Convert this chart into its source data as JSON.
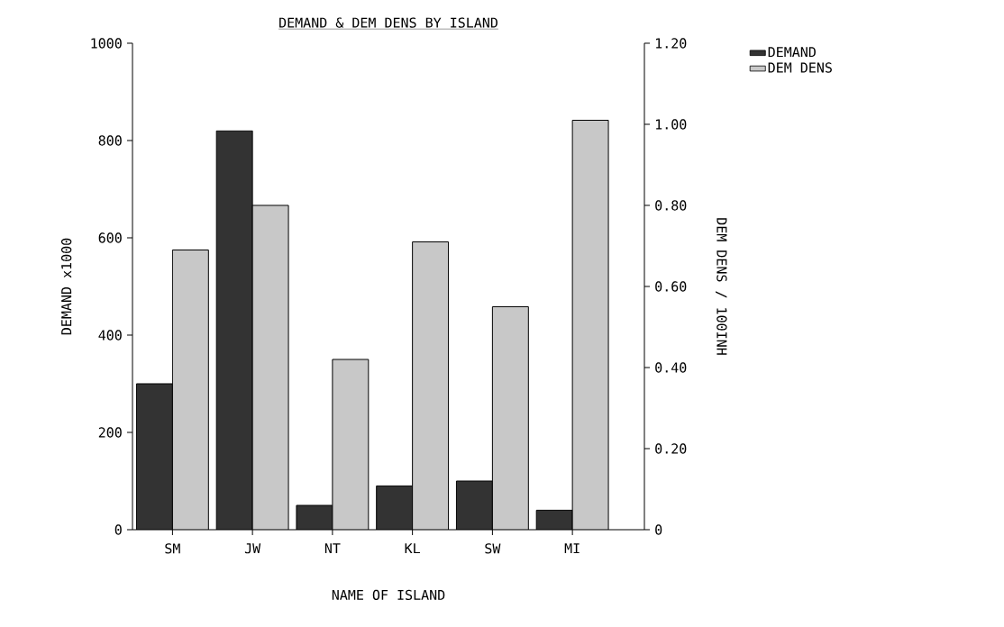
{
  "chart_data": {
    "type": "bar",
    "title": "DEMAND & DEM DENS BY ISLAND",
    "xlabel": "NAME OF ISLAND",
    "ylabel": "DEMAND x1000",
    "y2label": "DEM DENS / 100INH",
    "categories": [
      "SM",
      "JW",
      "NT",
      "KL",
      "SW",
      "MI"
    ],
    "series": [
      {
        "name": "DEMAND",
        "color": "#333333",
        "values": [
          300,
          820,
          50,
          90,
          100,
          40
        ]
      },
      {
        "name": "DEM DENS",
        "color": "#c8c8c8",
        "axis": "y2",
        "values": [
          0.69,
          0.8,
          0.42,
          0.71,
          0.55,
          1.01
        ]
      }
    ],
    "ylim": [
      0,
      1000
    ],
    "yticks": [
      0,
      200,
      400,
      600,
      800,
      1000
    ],
    "y2lim": [
      0,
      1.2
    ],
    "y2ticks": [
      0,
      {
        "value": 0.2,
        "label": "0.20"
      },
      {
        "value": 0.4,
        "label": "0.40"
      },
      {
        "value": 0.6,
        "label": "0.60"
      },
      {
        "value": 0.8,
        "label": "0.80"
      },
      {
        "value": 1.0,
        "label": "1.00"
      },
      {
        "value": 1.2,
        "label": "1.20"
      }
    ],
    "legend": "top right"
  }
}
